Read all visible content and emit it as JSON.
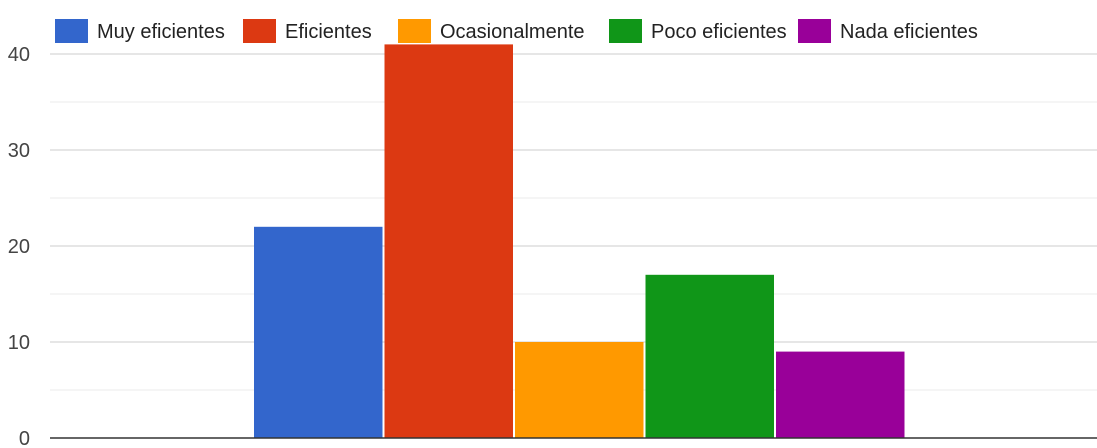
{
  "chart_data": {
    "type": "bar",
    "title": "",
    "xlabel": "",
    "ylabel": "",
    "ylim": [
      0,
      40
    ],
    "yticks": [
      0,
      10,
      20,
      30,
      40
    ],
    "grid": true,
    "legend_position": "top",
    "series": [
      {
        "name": "Muy eficientes",
        "value": 22,
        "color": "#3366cc"
      },
      {
        "name": "Eficientes",
        "value": 41,
        "color": "#dc3912"
      },
      {
        "name": "Ocasionalmente",
        "value": 10,
        "color": "#ff9900"
      },
      {
        "name": "Poco eficientes",
        "value": 17,
        "color": "#109618"
      },
      {
        "name": "Nada eficientes",
        "value": 9,
        "color": "#990099"
      }
    ]
  }
}
